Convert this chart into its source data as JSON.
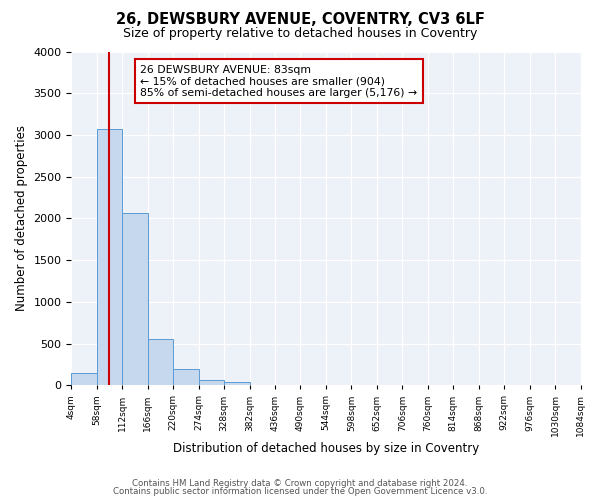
{
  "title": "26, DEWSBURY AVENUE, COVENTRY, CV3 6LF",
  "subtitle": "Size of property relative to detached houses in Coventry",
  "xlabel": "Distribution of detached houses by size in Coventry",
  "ylabel": "Number of detached properties",
  "bin_edges": [
    4,
    58,
    112,
    166,
    220,
    274,
    328,
    382,
    436,
    490,
    544,
    598,
    652,
    706,
    760,
    814,
    868,
    922,
    976,
    1030,
    1084
  ],
  "bar_heights": [
    150,
    3070,
    2060,
    560,
    200,
    65,
    40,
    0,
    0,
    0,
    0,
    0,
    0,
    0,
    0,
    0,
    0,
    0,
    0,
    0
  ],
  "bar_color": "#c5d8ee",
  "bar_edge_color": "#5b9bd5",
  "property_value": 83,
  "vline_color": "#cc0000",
  "ylim": [
    0,
    4000
  ],
  "yticks": [
    0,
    500,
    1000,
    1500,
    2000,
    2500,
    3000,
    3500,
    4000
  ],
  "annotation_line1": "26 DEWSBURY AVENUE: 83sqm",
  "annotation_line2": "← 15% of detached houses are smaller (904)",
  "annotation_line3": "85% of semi-detached houses are larger (5,176) →",
  "annotation_box_color": "#ffffff",
  "annotation_box_edge": "#cc0000",
  "footer_line1": "Contains HM Land Registry data © Crown copyright and database right 2024.",
  "footer_line2": "Contains public sector information licensed under the Open Government Licence v3.0.",
  "bg_color": "#ffffff",
  "plot_bg_color": "#edf2f9",
  "tick_labels": [
    "4sqm",
    "58sqm",
    "112sqm",
    "166sqm",
    "220sqm",
    "274sqm",
    "328sqm",
    "382sqm",
    "436sqm",
    "490sqm",
    "544sqm",
    "598sqm",
    "652sqm",
    "706sqm",
    "760sqm",
    "814sqm",
    "868sqm",
    "922sqm",
    "976sqm",
    "1030sqm",
    "1084sqm"
  ]
}
